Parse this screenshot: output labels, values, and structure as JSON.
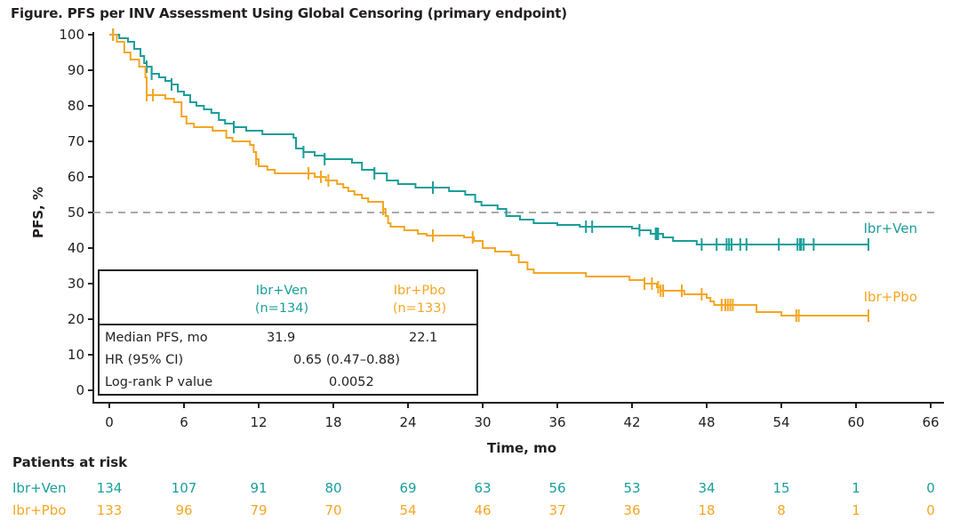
{
  "chart_data": {
    "type": "line",
    "subtype": "kaplan-meier",
    "title": "Figure. PFS per INV Assessment Using Global Censoring (primary endpoint)",
    "xlabel": "Time, mo",
    "ylabel": "PFS, %",
    "xlim": [
      0,
      66
    ],
    "ylim": [
      0,
      100
    ],
    "x_ticks": [
      0,
      6,
      12,
      18,
      24,
      30,
      36,
      42,
      48,
      54,
      60,
      66
    ],
    "y_ticks": [
      0,
      10,
      20,
      30,
      40,
      50,
      60,
      70,
      80,
      90,
      100
    ],
    "reference_line": {
      "y": 50,
      "style": "dashed",
      "color": "#a7a9ac"
    },
    "grid": false,
    "series": [
      {
        "name": "Ibr+Ven",
        "color": "#1a9e9a",
        "label": "Ibr+Ven",
        "steps": [
          [
            0,
            100
          ],
          [
            0.8,
            99
          ],
          [
            1.5,
            98
          ],
          [
            2,
            96
          ],
          [
            2.5,
            94
          ],
          [
            2.8,
            92
          ],
          [
            3.0,
            91
          ],
          [
            3.4,
            89
          ],
          [
            4.0,
            88
          ],
          [
            4.5,
            87
          ],
          [
            5.0,
            86
          ],
          [
            5.5,
            84
          ],
          [
            6.0,
            83
          ],
          [
            6.5,
            81
          ],
          [
            7.0,
            80
          ],
          [
            7.6,
            79
          ],
          [
            8.2,
            78
          ],
          [
            8.8,
            76
          ],
          [
            9.3,
            75
          ],
          [
            10.0,
            74
          ],
          [
            11.0,
            73
          ],
          [
            12.3,
            72
          ],
          [
            14.8,
            71
          ],
          [
            15.0,
            68
          ],
          [
            15.6,
            67
          ],
          [
            16.5,
            66
          ],
          [
            17.3,
            65
          ],
          [
            19.5,
            64
          ],
          [
            20.3,
            62
          ],
          [
            21.3,
            61
          ],
          [
            22.3,
            59
          ],
          [
            23.2,
            58
          ],
          [
            24.6,
            57
          ],
          [
            27.3,
            56
          ],
          [
            28.6,
            55
          ],
          [
            29.4,
            53
          ],
          [
            29.9,
            52
          ],
          [
            31.2,
            51
          ],
          [
            31.9,
            49
          ],
          [
            33.0,
            48
          ],
          [
            34.1,
            47
          ],
          [
            36.0,
            46.5
          ],
          [
            37.8,
            46
          ],
          [
            42.0,
            45.5
          ],
          [
            42.6,
            45
          ],
          [
            43.5,
            44
          ],
          [
            44.5,
            43
          ],
          [
            45.3,
            42
          ],
          [
            47.2,
            41
          ],
          [
            61.0,
            41
          ]
        ],
        "censor_times": [
          0.3,
          3.0,
          3.4,
          5.0,
          10.0,
          15.6,
          17.3,
          21.3,
          26.0,
          38.3,
          38.8,
          42.6,
          43.9,
          44.0,
          44.1,
          47.6,
          48.8,
          49.6,
          49.8,
          50.0,
          50.7,
          51.2,
          53.8,
          55.3,
          55.5,
          55.6,
          55.8,
          56.6,
          61.0
        ]
      },
      {
        "name": "Ibr+Pbo",
        "color": "#f5a623",
        "label": "Ibr+Pbo",
        "steps": [
          [
            0,
            100
          ],
          [
            0.6,
            98
          ],
          [
            1.2,
            95
          ],
          [
            1.7,
            93
          ],
          [
            2.4,
            91
          ],
          [
            2.9,
            88
          ],
          [
            3.0,
            83
          ],
          [
            4.5,
            82
          ],
          [
            5.2,
            81
          ],
          [
            5.8,
            77
          ],
          [
            6.2,
            75
          ],
          [
            6.8,
            74
          ],
          [
            8.3,
            73
          ],
          [
            9.4,
            71
          ],
          [
            9.9,
            70
          ],
          [
            11.3,
            69
          ],
          [
            11.6,
            67
          ],
          [
            11.8,
            65
          ],
          [
            12.0,
            63
          ],
          [
            12.7,
            62
          ],
          [
            13.3,
            61
          ],
          [
            16.5,
            60
          ],
          [
            17.4,
            59
          ],
          [
            18.3,
            58
          ],
          [
            18.8,
            57
          ],
          [
            19.2,
            56
          ],
          [
            19.7,
            55
          ],
          [
            20.3,
            54
          ],
          [
            20.8,
            53
          ],
          [
            22.0,
            51
          ],
          [
            22.2,
            49
          ],
          [
            22.4,
            47
          ],
          [
            22.6,
            46
          ],
          [
            23.7,
            45
          ],
          [
            24.8,
            44
          ],
          [
            25.5,
            43.5
          ],
          [
            28.5,
            43
          ],
          [
            29.3,
            42
          ],
          [
            30.0,
            40
          ],
          [
            31.0,
            39
          ],
          [
            32.3,
            38
          ],
          [
            32.9,
            36
          ],
          [
            33.6,
            34
          ],
          [
            34.1,
            33
          ],
          [
            38.3,
            32
          ],
          [
            41.8,
            31
          ],
          [
            43.0,
            30
          ],
          [
            44.0,
            29
          ],
          [
            44.3,
            28
          ],
          [
            46.2,
            27
          ],
          [
            48.0,
            26
          ],
          [
            48.3,
            25
          ],
          [
            48.6,
            24
          ],
          [
            52.0,
            22
          ],
          [
            54.0,
            21
          ],
          [
            61.0,
            21
          ]
        ],
        "censor_times": [
          0.3,
          3.0,
          3.5,
          11.8,
          16.0,
          17.0,
          17.6,
          22.0,
          26.0,
          29.2,
          43.0,
          43.6,
          44.1,
          44.3,
          44.5,
          46.0,
          47.6,
          49.2,
          49.5,
          49.7,
          49.9,
          50.1,
          55.2,
          55.4,
          61.0
        ]
      }
    ],
    "table": {
      "groups": [
        {
          "name": "Ibr+Ven",
          "n": "(n=134)",
          "color": "#1a9e9a"
        },
        {
          "name": "Ibr+Pbo",
          "n": "(n=133)",
          "color": "#f5a623"
        }
      ],
      "rows": [
        {
          "label": "Median PFS, mo",
          "ven": "31.9",
          "pbo": "22.1"
        },
        {
          "label": "HR (95% CI)",
          "combined": "0.65 (0.47–0.88)"
        },
        {
          "label": "Log-rank P value",
          "combined": "0.0052"
        }
      ]
    },
    "risk_table": {
      "title": "Patients at risk",
      "times": [
        0,
        6,
        12,
        18,
        24,
        30,
        36,
        42,
        48,
        54,
        60,
        66
      ],
      "rows": [
        {
          "label": "Ibr+Ven",
          "color": "#1a9e9a",
          "values": [
            "134",
            "107",
            "91",
            "80",
            "69",
            "63",
            "56",
            "53",
            "34",
            "15",
            "1",
            "0"
          ]
        },
        {
          "label": "Ibr+Pbo",
          "color": "#f5a623",
          "values": [
            "133",
            "96",
            "79",
            "70",
            "54",
            "46",
            "37",
            "36",
            "18",
            "8",
            "1",
            "0"
          ]
        }
      ]
    }
  },
  "title": "Figure. PFS per INV Assessment Using Global Censoring (primary endpoint)",
  "table": {
    "ven_name": "Ibr+Ven",
    "ven_n": "(n=134)",
    "pbo_name": "Ibr+Pbo",
    "pbo_n": "(n=133)",
    "median_label": "Median PFS, mo",
    "median_ven": "31.9",
    "median_pbo": "22.1",
    "hr_label": "HR (95% CI)",
    "hr_value": "0.65 (0.47–0.88)",
    "p_label": "Log-rank P value",
    "p_value": "0.0052"
  }
}
